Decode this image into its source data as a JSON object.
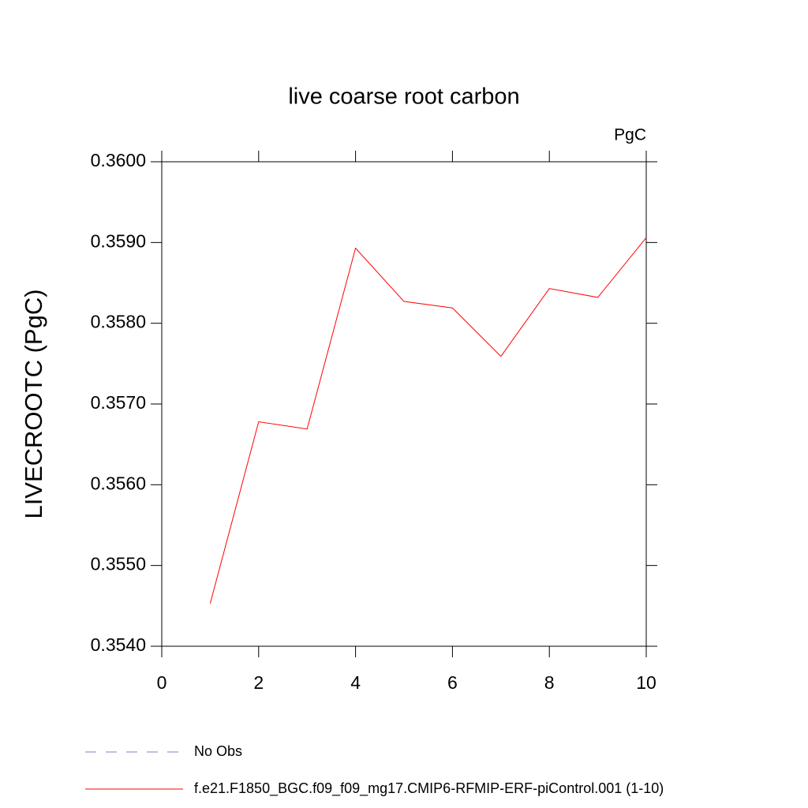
{
  "chart_data": {
    "type": "line",
    "title": "live coarse root carbon",
    "units": "PgC",
    "y_label": "LIVECROOTC  (PgC)",
    "x": [
      1,
      2,
      3,
      4,
      5,
      6,
      7,
      8,
      9,
      10
    ],
    "series": [
      {
        "name": "f.e21.F1850_BGC.f09_f09_mg17.CMIP6-RFMIP-ERF-piControl.001 (1-10)",
        "color": "#ff0000",
        "values": [
          0.35453,
          0.35678,
          0.35669,
          0.35893,
          0.35827,
          0.35819,
          0.35759,
          0.35843,
          0.35832,
          0.35906
        ]
      }
    ],
    "legend_extra": [
      {
        "name": "No Obs",
        "color": "#8080c0",
        "dashed": true
      }
    ],
    "xlim": [
      0,
      10
    ],
    "xticks": [
      0,
      2,
      4,
      6,
      8,
      10
    ],
    "ylim": [
      0.354,
      0.36
    ],
    "yticks": [
      {
        "value": 0.354,
        "label": "0.3540"
      },
      {
        "value": 0.355,
        "label": "0.3550"
      },
      {
        "value": 0.356,
        "label": "0.3560"
      },
      {
        "value": 0.357,
        "label": "0.3570"
      },
      {
        "value": 0.358,
        "label": "0.3580"
      },
      {
        "value": 0.359,
        "label": "0.3590"
      },
      {
        "value": 0.36,
        "label": "0.3600"
      }
    ],
    "grid": false
  }
}
